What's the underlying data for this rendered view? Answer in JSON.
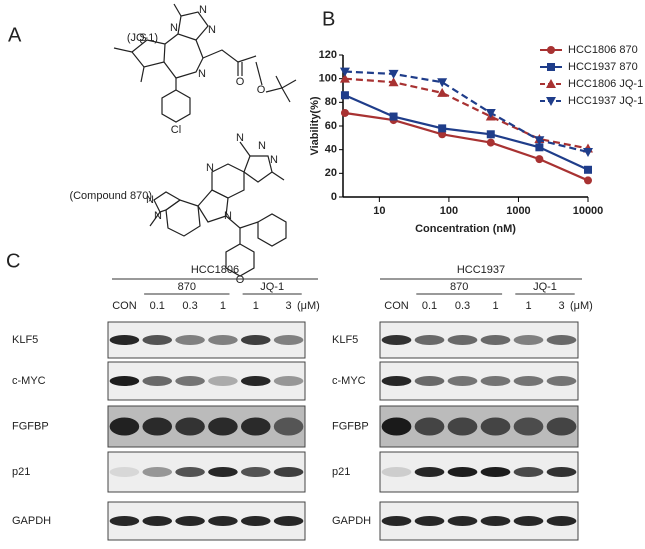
{
  "panels": {
    "a": "A",
    "b": "B",
    "c": "C"
  },
  "structures": [
    {
      "name": "(JQ-1)",
      "atoms": [
        "N",
        "N",
        "N",
        "S",
        "N",
        "O",
        "O",
        "Cl"
      ]
    },
    {
      "name": "(Compound 870)",
      "atoms": [
        "N",
        "N",
        "N",
        "N",
        "N",
        "N",
        "N",
        "O"
      ]
    }
  ],
  "chart_data": {
    "type": "line",
    "x_label": "Concentration (nM)",
    "y_label": "Viability(%)",
    "x": [
      3.2,
      16,
      80,
      400,
      2000,
      10000
    ],
    "xlim": [
      3,
      10000
    ],
    "xticks": [
      10,
      100,
      1000,
      10000
    ],
    "xscale": "log",
    "ylim": [
      0,
      120
    ],
    "yticks": [
      0,
      20,
      40,
      60,
      80,
      100,
      120
    ],
    "legend": "upper right",
    "series": [
      {
        "name": "HCC1806 870",
        "color": "#a83232",
        "marker": "circle",
        "linestyle": "solid",
        "values": [
          71,
          65,
          53,
          46,
          32,
          14
        ]
      },
      {
        "name": "HCC1937 870",
        "color": "#1f3d8a",
        "marker": "square",
        "linestyle": "solid",
        "values": [
          86,
          68,
          58,
          53,
          42,
          23
        ]
      },
      {
        "name": "HCC1806 JQ-1",
        "color": "#a83232",
        "marker": "triangle",
        "linestyle": "dashed",
        "values": [
          100,
          97,
          88,
          68,
          49,
          41
        ]
      },
      {
        "name": "HCC1937 JQ-1",
        "color": "#1f3d8a",
        "marker": "triangle-down",
        "linestyle": "dashed",
        "values": [
          106,
          104,
          97,
          71,
          48,
          38
        ]
      }
    ]
  },
  "blots": [
    {
      "cell_line": "HCC1806",
      "groups": [
        "870",
        "JQ-1"
      ],
      "lanes": [
        "CON",
        "0.1",
        "0.3",
        "1",
        "1",
        "3"
      ],
      "unit": "(μM)",
      "rows": [
        "KLF5",
        "c-MYC",
        "FGFBP",
        "p21",
        "GAPDH"
      ]
    },
    {
      "cell_line": "HCC1937",
      "groups": [
        "870",
        "JQ-1"
      ],
      "lanes": [
        "CON",
        "0.1",
        "0.3",
        "1",
        "1",
        "3"
      ],
      "unit": "(μM)",
      "rows": [
        "KLF5",
        "c-MYC",
        "FGFBP",
        "p21",
        "GAPDH"
      ]
    }
  ]
}
